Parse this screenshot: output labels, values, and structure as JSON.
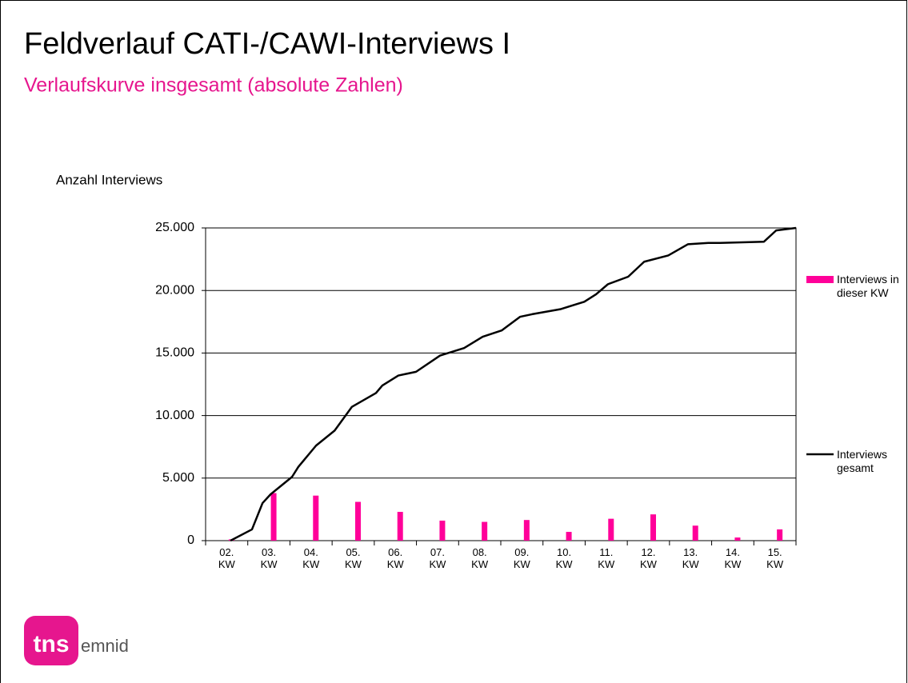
{
  "title": "Feldverlauf CATI-/CAWI-Interviews I",
  "subtitle": "Verlaufskurve insgesamt (absolute Zahlen)",
  "logo": {
    "mark": "tns",
    "text": "emnid"
  },
  "chart_data": {
    "type": "combo",
    "ylabel": "Anzahl Interviews",
    "categories": [
      "02. KW",
      "03. KW",
      "04. KW",
      "05. KW",
      "06. KW",
      "07. KW",
      "08. KW",
      "09. KW",
      "10. KW",
      "11. KW",
      "12. KW",
      "13. KW",
      "14. KW",
      "15. KW"
    ],
    "ylim": [
      0,
      25000
    ],
    "yticks": [
      0,
      {
        "value": 5000,
        "label": "5.000"
      },
      {
        "value": 10000,
        "label": "10.000"
      },
      {
        "value": 15000,
        "label": "15.000"
      },
      {
        "value": 20000,
        "label": "20.000"
      },
      {
        "value": 25000,
        "label": "25.000"
      }
    ],
    "grid": true,
    "legend": "right",
    "series": [
      {
        "name": "Interviews in dieser KW",
        "type": "bar",
        "color": "#ff0099",
        "values": [
          100,
          3800,
          3600,
          3100,
          2300,
          1600,
          1500,
          1650,
          700,
          1750,
          2100,
          1200,
          250,
          900
        ]
      },
      {
        "name": "Interviews gesamt",
        "type": "line",
        "color": "#000000",
        "x": [
          0.59,
          1.1,
          1.35,
          1.54,
          2.05,
          2.2,
          2.62,
          3.06,
          3.47,
          4.04,
          4.19,
          4.57,
          4.99,
          5.56,
          6.13,
          6.57,
          7.02,
          7.46,
          7.74,
          8.41,
          8.98,
          9.26,
          9.54,
          10.02,
          10.4,
          10.97,
          11.44,
          11.92,
          12.2,
          13.24,
          13.53,
          14.0
        ],
        "values": [
          0,
          900,
          3000,
          3700,
          5100,
          5900,
          7600,
          8800,
          10700,
          11800,
          12400,
          13200,
          13500,
          14800,
          15400,
          16300,
          16800,
          17900,
          18100,
          18500,
          19100,
          19700,
          20500,
          21100,
          22300,
          22800,
          23700,
          23800,
          23800,
          23900,
          24800,
          25000
        ]
      }
    ]
  }
}
